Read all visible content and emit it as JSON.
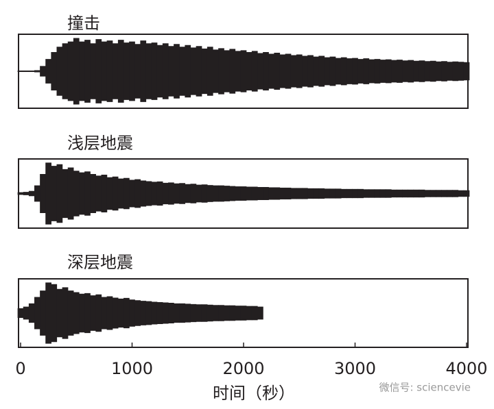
{
  "chart_data": [
    {
      "type": "waveform",
      "title": "撞击",
      "color": "#231f20",
      "xlim": [
        0,
        4000
      ],
      "ylim": [
        0,
        1
      ],
      "x": [
        0,
        50,
        100,
        150,
        200,
        250,
        300,
        350,
        400,
        450,
        500,
        550,
        600,
        650,
        700,
        750,
        800,
        850,
        900,
        950,
        1000,
        1050,
        1100,
        1150,
        1200,
        1250,
        1300,
        1350,
        1400,
        1450,
        1500,
        1550,
        1600,
        1650,
        1700,
        1750,
        1800,
        1850,
        1900,
        1950,
        2000,
        2050,
        2100,
        2150,
        2200,
        2250,
        2300,
        2350,
        2400,
        2450,
        2500,
        2550,
        2600,
        2650,
        2700,
        2750,
        2800,
        2850,
        2900,
        2950,
        3000,
        3050,
        3100,
        3150,
        3200,
        3250,
        3300,
        3350,
        3400,
        3450,
        3500,
        3550,
        3600,
        3650,
        3700,
        3750,
        3800,
        3850,
        3900,
        3950,
        4000
      ],
      "values": [
        0.02,
        0.02,
        0.02,
        0.03,
        0.15,
        0.35,
        0.55,
        0.7,
        0.8,
        0.85,
        0.95,
        0.85,
        0.9,
        0.8,
        0.92,
        0.85,
        0.88,
        0.8,
        0.9,
        0.82,
        0.85,
        0.78,
        0.88,
        0.8,
        0.82,
        0.75,
        0.8,
        0.72,
        0.78,
        0.7,
        0.75,
        0.68,
        0.72,
        0.65,
        0.7,
        0.62,
        0.66,
        0.6,
        0.64,
        0.58,
        0.6,
        0.55,
        0.58,
        0.52,
        0.55,
        0.5,
        0.53,
        0.48,
        0.5,
        0.46,
        0.48,
        0.44,
        0.46,
        0.42,
        0.44,
        0.4,
        0.42,
        0.38,
        0.4,
        0.37,
        0.38,
        0.35,
        0.37,
        0.34,
        0.35,
        0.33,
        0.34,
        0.32,
        0.33,
        0.31,
        0.32,
        0.3,
        0.31,
        0.29,
        0.3,
        0.28,
        0.29,
        0.27,
        0.28,
        0.27,
        0.26
      ]
    },
    {
      "type": "waveform",
      "title": "浅层地震",
      "color": "#231f20",
      "xlim": [
        0,
        4000
      ],
      "ylim": [
        0,
        1
      ],
      "x": [
        0,
        50,
        100,
        150,
        200,
        250,
        300,
        350,
        400,
        450,
        500,
        550,
        600,
        650,
        700,
        750,
        800,
        850,
        900,
        950,
        1000,
        1050,
        1100,
        1150,
        1200,
        1250,
        1300,
        1350,
        1400,
        1450,
        1500,
        1550,
        1600,
        1650,
        1700,
        1750,
        1800,
        1850,
        1900,
        1950,
        2000,
        2050,
        2100,
        2150,
        2200,
        2250,
        2300,
        2350,
        2400,
        2450,
        2500,
        2550,
        2600,
        2650,
        2700,
        2750,
        2800,
        2850,
        2900,
        2950,
        3000,
        3050,
        3100,
        3150,
        3200,
        3250,
        3300,
        3350,
        3400,
        3450,
        3500,
        3550,
        3600,
        3650,
        3700,
        3750,
        3800,
        3850,
        3900,
        3950,
        4000
      ],
      "values": [
        0.04,
        0.05,
        0.08,
        0.25,
        0.6,
        0.95,
        0.85,
        0.9,
        0.75,
        0.8,
        0.7,
        0.65,
        0.68,
        0.6,
        0.55,
        0.58,
        0.5,
        0.52,
        0.46,
        0.48,
        0.42,
        0.44,
        0.4,
        0.38,
        0.36,
        0.37,
        0.33,
        0.34,
        0.31,
        0.32,
        0.29,
        0.3,
        0.27,
        0.28,
        0.26,
        0.25,
        0.25,
        0.24,
        0.23,
        0.22,
        0.22,
        0.21,
        0.21,
        0.2,
        0.2,
        0.19,
        0.19,
        0.18,
        0.18,
        0.17,
        0.17,
        0.17,
        0.16,
        0.16,
        0.16,
        0.15,
        0.15,
        0.15,
        0.14,
        0.14,
        0.14,
        0.14,
        0.13,
        0.13,
        0.13,
        0.13,
        0.13,
        0.12,
        0.12,
        0.12,
        0.12,
        0.12,
        0.12,
        0.11,
        0.11,
        0.11,
        0.11,
        0.11,
        0.11,
        0.1,
        0.1
      ]
    },
    {
      "type": "waveform",
      "title": "深层地震",
      "color": "#231f20",
      "xlim": [
        0,
        4000
      ],
      "ylim": [
        0,
        1
      ],
      "x": [
        0,
        50,
        100,
        150,
        200,
        250,
        300,
        350,
        400,
        450,
        500,
        550,
        600,
        650,
        700,
        750,
        800,
        850,
        900,
        950,
        1000,
        1050,
        1100,
        1150,
        1200,
        1250,
        1300,
        1350,
        1400,
        1450,
        1500,
        1550,
        1600,
        1650,
        1700,
        1750,
        1800,
        1850,
        1900,
        1950,
        2000,
        2050,
        2100,
        2150
      ],
      "values": [
        0.15,
        0.2,
        0.3,
        0.5,
        0.7,
        0.95,
        0.9,
        0.75,
        0.8,
        0.7,
        0.65,
        0.6,
        0.62,
        0.55,
        0.58,
        0.5,
        0.52,
        0.48,
        0.45,
        0.47,
        0.42,
        0.4,
        0.38,
        0.37,
        0.35,
        0.34,
        0.33,
        0.32,
        0.3,
        0.3,
        0.29,
        0.28,
        0.27,
        0.27,
        0.26,
        0.25,
        0.25,
        0.24,
        0.24,
        0.23,
        0.23,
        0.22,
        0.22,
        0.2
      ],
      "xticks": [
        0,
        1000,
        2000,
        3000,
        4000
      ],
      "xlabel": "时间（秒）"
    }
  ],
  "watermark": "微信号: sciencevie"
}
